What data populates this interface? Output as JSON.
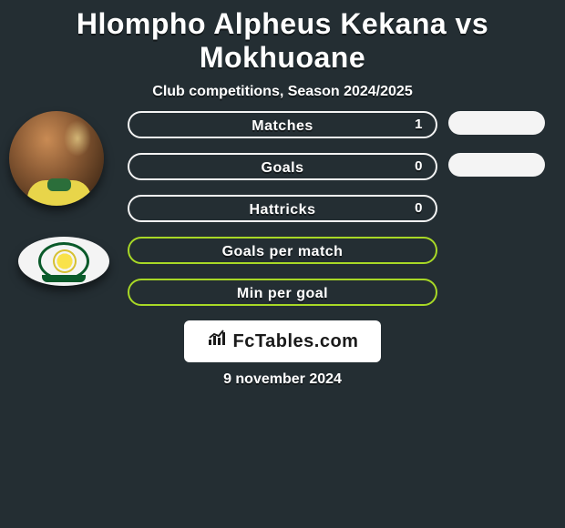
{
  "title": "Hlompho Alpheus Kekana vs Mokhuoane",
  "subtitle": "Club competitions, Season 2024/2025",
  "date": "9 november 2024",
  "brand": "FcTables.com",
  "colors": {
    "background": "#242e33",
    "row1_border": "#f4f4f4",
    "row2_border": "#a8d826",
    "pill_bg": "#f4f4f4",
    "text": "#ffffff",
    "brand_box_bg": "#ffffff",
    "brand_text": "#1a1a1a"
  },
  "stats": {
    "rows": [
      {
        "label": "Matches",
        "value": "1",
        "border": "#f4f4f4",
        "has_right_pill": true
      },
      {
        "label": "Goals",
        "value": "0",
        "border": "#f4f4f4",
        "has_right_pill": true
      },
      {
        "label": "Hattricks",
        "value": "0",
        "border": "#f4f4f4",
        "has_right_pill": false
      },
      {
        "label": "Goals per match",
        "value": "",
        "border": "#a8d826",
        "has_right_pill": false
      },
      {
        "label": "Min per goal",
        "value": "",
        "border": "#a8d826",
        "has_right_pill": false
      }
    ]
  },
  "fontsize": {
    "title": 32,
    "subtitle": 16,
    "row": 16,
    "date": 16,
    "brand": 20
  }
}
